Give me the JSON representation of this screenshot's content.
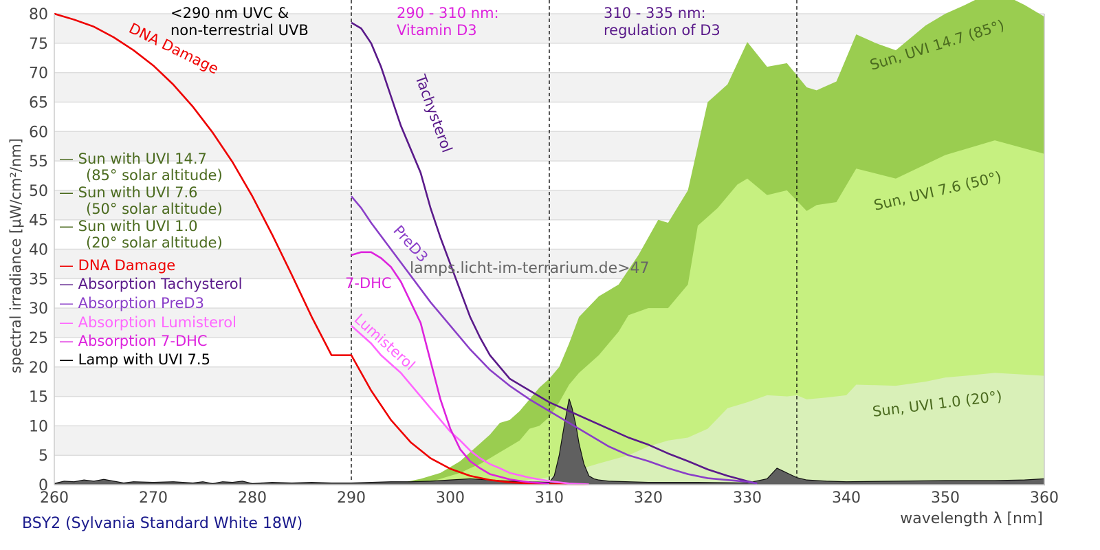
{
  "chart_data": {
    "type": "area",
    "title": "",
    "xlabel": "wavelength λ [nm]",
    "ylabel": "spectral irradiance [µW/cm²/nm]",
    "xlim": [
      260,
      360
    ],
    "ylim": [
      0,
      80
    ],
    "x_ticks": [
      "260",
      "270",
      "280",
      "290",
      "300",
      "310",
      "320",
      "330",
      "340",
      "350",
      "360"
    ],
    "y_ticks": [
      "0",
      "5",
      "10",
      "15",
      "20",
      "25",
      "30",
      "35",
      "40",
      "45",
      "50",
      "55",
      "60",
      "65",
      "70",
      "75",
      "80"
    ],
    "grid": "horizontal alternating bands",
    "lamp_caption": "BSY2 (Sylvania Standard White 18W)",
    "watermark": "lamps.licht-im-terrarium.de>47",
    "vertical_markers": [
      290,
      310,
      335
    ],
    "region_labels": [
      {
        "text": "<290 nm UVC &\nnon-terrestrial UVB",
        "line1": "<290 nm UVC &",
        "line2": "non-terrestrial UVB",
        "color": "#000000"
      },
      {
        "text": "290 - 310 nm:\nVitamin D3",
        "line1": "290 - 310 nm:",
        "line2": "Vitamin D3",
        "color": "#dd22dd"
      },
      {
        "text": "310 - 335 nm:\nregulation of D3",
        "line1": "310 - 335 nm:",
        "line2": "regulation of D3",
        "color": "#5a1a8a"
      }
    ],
    "legend": {
      "placement": "left",
      "entries": [
        {
          "label": "— Sun with UVI 14.7",
          "sub": "(85° solar altitude)",
          "color": "#4a6a1e"
        },
        {
          "label": "— Sun with UVI 7.6",
          "sub": "(50° solar altitude)",
          "color": "#4a6a1e"
        },
        {
          "label": "— Sun with UVI 1.0",
          "sub": "(20° solar altitude)",
          "color": "#4a6a1e"
        },
        {
          "label": "— DNA Damage",
          "color": "#ee0000"
        },
        {
          "label": "— Absorption Tachysterol",
          "color": "#5a1a8a"
        },
        {
          "label": "— Absorption PreD3",
          "color": "#8a3ec8"
        },
        {
          "label": "— Absorption Lumisterol",
          "color": "#ff66ff"
        },
        {
          "label": "— Absorption 7-DHC",
          "color": "#dd22dd"
        },
        {
          "label": "— Lamp with UVI 7.5",
          "color": "#000000"
        }
      ]
    },
    "areas": [
      {
        "name": "Sun, UVI 14.7 (85°)",
        "label": "Sun, UVI 14.7 (85°)",
        "color": "#9acd50",
        "x": [
          293,
          295,
          297,
          299,
          300,
          301,
          302,
          303,
          304,
          305,
          306,
          307,
          308,
          309,
          310,
          311,
          312,
          313,
          315,
          317,
          319,
          321,
          322,
          324,
          326,
          328,
          330,
          332,
          334,
          336,
          337,
          339,
          341,
          343,
          345,
          348,
          350,
          352,
          355,
          358,
          360
        ],
        "y": [
          0,
          0.3,
          1.0,
          2.0,
          3.0,
          4.0,
          5.5,
          7.0,
          8.5,
          10.5,
          11.0,
          12.5,
          14.5,
          16.5,
          18.0,
          20.0,
          24.0,
          28.5,
          32.0,
          34.0,
          39.0,
          45.0,
          44.5,
          50.0,
          65.0,
          68.0,
          75.2,
          71.0,
          71.6,
          67.5,
          67.0,
          68.5,
          76.5,
          75.0,
          73.8,
          78.0,
          80.0,
          81.5,
          84.0,
          81.5,
          79.5
        ]
      },
      {
        "name": "Sun, UVI 7.6 (50°)",
        "label": "Sun, UVI 7.6 (50°)",
        "color": "#c6f080",
        "x": [
          296,
          298,
          300,
          301,
          302,
          303,
          304,
          305,
          306,
          307,
          308,
          309,
          310,
          311,
          312,
          313,
          315,
          317,
          318,
          320,
          322,
          324,
          325,
          327,
          329,
          330,
          332,
          334,
          336,
          337,
          339,
          341,
          345,
          350,
          355,
          360
        ],
        "y": [
          0,
          0.5,
          1.5,
          2.0,
          2.8,
          3.5,
          4.5,
          5.5,
          6.5,
          7.5,
          9.5,
          10.0,
          11.5,
          14.0,
          17.0,
          19.0,
          22.0,
          26.0,
          28.8,
          30.0,
          30.0,
          34.0,
          44.0,
          47.0,
          51.0,
          52.0,
          49.2,
          50.0,
          46.5,
          47.5,
          48.0,
          53.7,
          52.0,
          56.0,
          58.5,
          56.2
        ]
      },
      {
        "name": "Sun, UVI 1.0 (20°)",
        "label": "Sun, UVI 1.0 (20°)",
        "color": "#d9f0b8",
        "x": [
          300,
          303,
          306,
          309,
          311,
          313,
          315,
          318,
          320,
          322,
          324,
          326,
          328,
          330,
          332,
          334,
          335,
          336,
          338,
          340,
          341,
          345,
          348,
          350,
          352,
          355,
          358,
          360
        ],
        "y": [
          0,
          0.3,
          0.6,
          1.0,
          1.6,
          2.6,
          3.6,
          5.0,
          6.5,
          7.5,
          8.0,
          9.5,
          13.0,
          14.0,
          15.2,
          15.0,
          15.2,
          14.5,
          14.8,
          15.2,
          17.0,
          16.8,
          17.5,
          18.2,
          18.5,
          19.0,
          18.7,
          18.5
        ]
      }
    ],
    "lines": [
      {
        "name": "DNA Damage",
        "label": "DNA Damage",
        "color": "#ee0000",
        "x": [
          260,
          262,
          264,
          266,
          268,
          270,
          272,
          274,
          276,
          278,
          280,
          282,
          284,
          286,
          288,
          290,
          292,
          294,
          296,
          298,
          300,
          302,
          304,
          306,
          308,
          310,
          312,
          314
        ],
        "y": [
          80,
          79,
          77.8,
          76,
          73.8,
          71.2,
          68,
          64.2,
          59.8,
          54.8,
          49,
          42.5,
          35.6,
          28.5,
          22,
          22.0,
          16.0,
          11.0,
          7.2,
          4.5,
          2.7,
          1.5,
          0.8,
          0.4,
          0.2,
          0.1,
          0.05,
          0.02
        ]
      },
      {
        "name": "Absorption Tachysterol",
        "label": "Tachysterol",
        "color": "#5a1a8a",
        "x": [
          290,
          291,
          292,
          293,
          294,
          295,
          296,
          297,
          298,
          299,
          300,
          301,
          302,
          303,
          304,
          306,
          308,
          310,
          312,
          314,
          316,
          318,
          320,
          322,
          324,
          326,
          328,
          330,
          331
        ],
        "y": [
          78.5,
          77.5,
          75,
          71,
          66,
          61,
          57,
          53,
          47,
          42,
          37.5,
          33,
          28.5,
          25,
          22,
          18,
          16,
          14,
          12.5,
          11,
          9.5,
          8,
          6.8,
          5.3,
          4.0,
          2.6,
          1.5,
          0.6,
          0.2
        ]
      },
      {
        "name": "Absorption PreD3",
        "label": "PreD3",
        "color": "#8a3ec8",
        "x": [
          290,
          291,
          292,
          294,
          296,
          298,
          300,
          302,
          304,
          306,
          308,
          310,
          312,
          314,
          316,
          318,
          320,
          322,
          324,
          326,
          328,
          330,
          331
        ],
        "y": [
          49,
          47,
          44.5,
          40,
          35.5,
          31,
          27,
          23,
          19.5,
          16.8,
          14.5,
          12.5,
          10.5,
          8.5,
          6.5,
          5.0,
          4.0,
          2.8,
          1.8,
          1.1,
          0.8,
          0.5,
          0.2
        ]
      },
      {
        "name": "Absorption Lumisterol",
        "label": "Lumisterol",
        "color": "#ff66ff",
        "x": [
          290,
          291,
          292,
          293,
          294,
          295,
          296,
          297,
          298,
          299,
          300,
          301,
          302,
          303,
          304,
          305,
          306,
          308,
          310,
          312,
          314
        ],
        "y": [
          27,
          25.5,
          24,
          22,
          20.5,
          19,
          17,
          15,
          13,
          11,
          9,
          7.5,
          5.8,
          4.5,
          3.5,
          2.8,
          2.0,
          1.2,
          0.6,
          0.2,
          0.05
        ]
      },
      {
        "name": "Absorption 7-DHC",
        "label": "7-DHC",
        "color": "#dd22dd",
        "x": [
          290,
          291,
          292,
          293,
          294,
          295,
          296,
          297,
          298,
          299,
          300,
          301,
          302,
          303,
          304,
          306,
          308,
          310
        ],
        "y": [
          39,
          39.5,
          39.5,
          38.5,
          37,
          34.5,
          31,
          27.5,
          21,
          14.5,
          9.5,
          6,
          4,
          2.8,
          1.8,
          0.9,
          0.4,
          0.2
        ]
      }
    ],
    "lamp_spectrum": {
      "name": "Lamp with UVI 7.5",
      "color": "#555555",
      "x": [
        260,
        261,
        262,
        263,
        264,
        265,
        266,
        267,
        268,
        270,
        272,
        274,
        275,
        276,
        277,
        278,
        279,
        280,
        282,
        284,
        286,
        288,
        290,
        292,
        294,
        296,
        298,
        300,
        302,
        304,
        306,
        308,
        310,
        310.5,
        311,
        311.5,
        312,
        312.3,
        312.7,
        313,
        313.5,
        314,
        314.5,
        315,
        316,
        318,
        320,
        325,
        330,
        332,
        333,
        334,
        335,
        336,
        338,
        340,
        345,
        350,
        355,
        358,
        360
      ],
      "y": [
        0.2,
        0.6,
        0.5,
        0.8,
        0.6,
        0.9,
        0.6,
        0.3,
        0.5,
        0.4,
        0.5,
        0.3,
        0.5,
        0.2,
        0.5,
        0.4,
        0.6,
        0.2,
        0.4,
        0.3,
        0.4,
        0.3,
        0.3,
        0.4,
        0.5,
        0.5,
        0.6,
        0.8,
        1.0,
        0.8,
        0.6,
        0.5,
        0.4,
        1.5,
        5,
        10,
        14.6,
        13,
        10,
        7,
        3.5,
        1.5,
        1.0,
        0.8,
        0.6,
        0.5,
        0.4,
        0.4,
        0.3,
        1.0,
        2.8,
        2.0,
        1.2,
        0.8,
        0.6,
        0.5,
        0.6,
        0.7,
        0.7,
        0.8,
        1.0
      ]
    },
    "region_annotations": [
      {
        "text": "DNA Damage",
        "color": "#ee0000"
      },
      {
        "text": "Tachysterol",
        "color": "#5a1a8a"
      },
      {
        "text": "PreD3",
        "color": "#8a3ec8"
      },
      {
        "text": "7-DHC",
        "color": "#dd22dd"
      },
      {
        "text": "Lumisterol",
        "color": "#ff66ff"
      },
      {
        "text": "Sun, UVI 14.7 (85°)",
        "color": "#4a6a1e"
      },
      {
        "text": "Sun, UVI 7.6 (50°)",
        "color": "#4a6a1e"
      },
      {
        "text": "Sun, UVI 1.0 (20°)",
        "color": "#4a6a1e"
      }
    ]
  }
}
